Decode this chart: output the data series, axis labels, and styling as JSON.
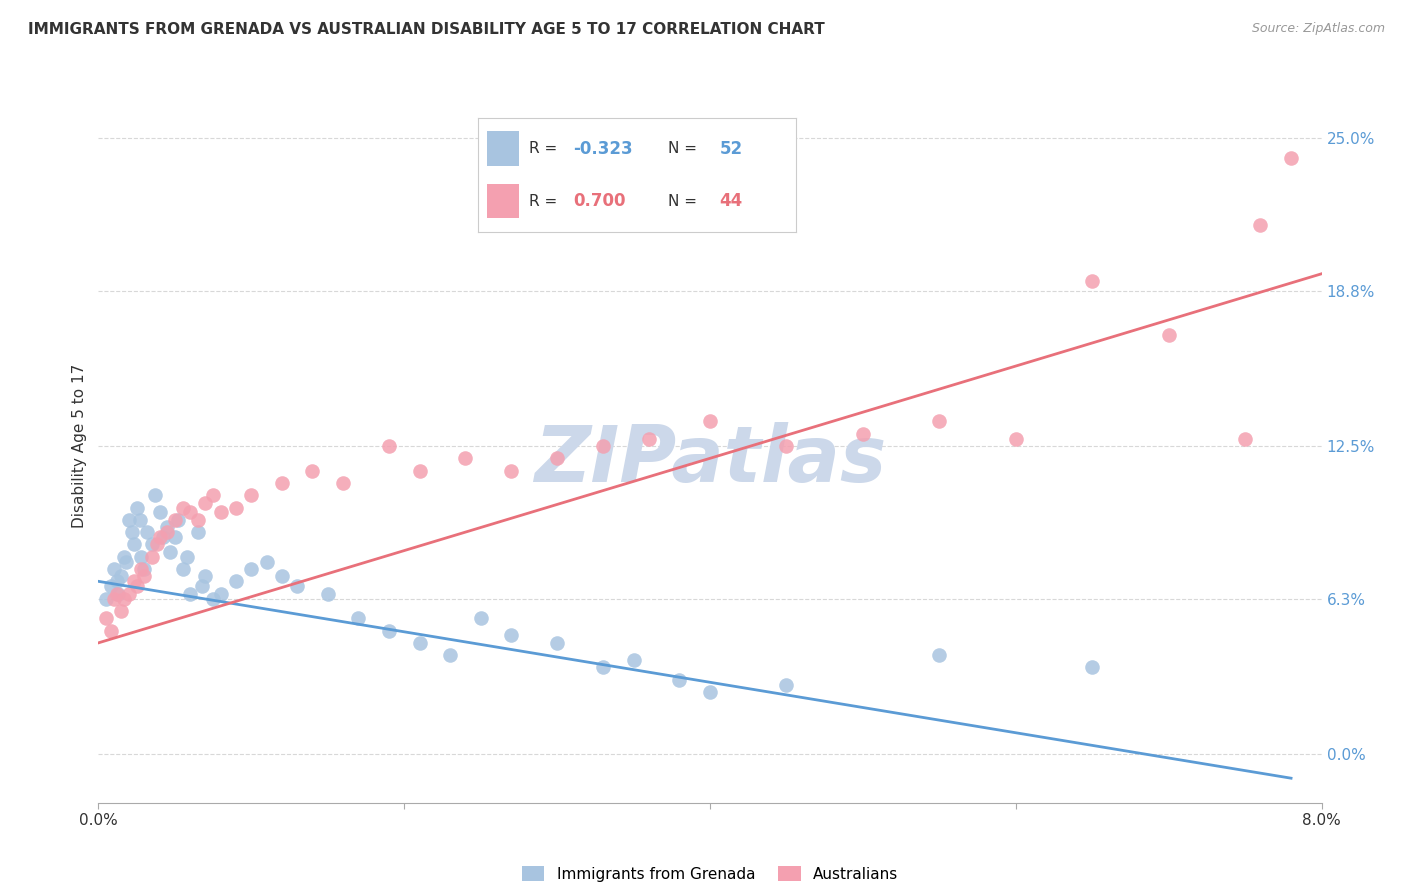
{
  "title": "IMMIGRANTS FROM GRENADA VS AUSTRALIAN DISABILITY AGE 5 TO 17 CORRELATION CHART",
  "source": "Source: ZipAtlas.com",
  "ylabel": "Disability Age 5 to 17",
  "ytick_values": [
    0.0,
    6.3,
    12.5,
    18.8,
    25.0
  ],
  "xlim": [
    0.0,
    8.0
  ],
  "ylim": [
    -2.0,
    27.0
  ],
  "plot_ylim_bottom": 0.0,
  "watermark": "ZIPatlas",
  "legend_entries": [
    {
      "label": "Immigrants from Grenada",
      "R": "-0.323",
      "N": "52"
    },
    {
      "label": "Australians",
      "R": "0.700",
      "N": "44"
    }
  ],
  "blue_scatter_x": [
    0.05,
    0.08,
    0.1,
    0.12,
    0.13,
    0.15,
    0.17,
    0.18,
    0.2,
    0.22,
    0.23,
    0.25,
    0.27,
    0.28,
    0.3,
    0.32,
    0.35,
    0.37,
    0.4,
    0.42,
    0.45,
    0.47,
    0.5,
    0.52,
    0.55,
    0.58,
    0.6,
    0.65,
    0.68,
    0.7,
    0.75,
    0.8,
    0.9,
    1.0,
    1.1,
    1.2,
    1.3,
    1.5,
    1.7,
    1.9,
    2.1,
    2.3,
    2.5,
    2.7,
    3.0,
    3.3,
    3.5,
    3.8,
    4.0,
    4.5,
    5.5,
    6.5
  ],
  "blue_scatter_y": [
    6.3,
    6.8,
    7.5,
    7.0,
    6.5,
    7.2,
    8.0,
    7.8,
    9.5,
    9.0,
    8.5,
    10.0,
    9.5,
    8.0,
    7.5,
    9.0,
    8.5,
    10.5,
    9.8,
    8.8,
    9.2,
    8.2,
    8.8,
    9.5,
    7.5,
    8.0,
    6.5,
    9.0,
    6.8,
    7.2,
    6.3,
    6.5,
    7.0,
    7.5,
    7.8,
    7.2,
    6.8,
    6.5,
    5.5,
    5.0,
    4.5,
    4.0,
    5.5,
    4.8,
    4.5,
    3.5,
    3.8,
    3.0,
    2.5,
    2.8,
    4.0,
    3.5
  ],
  "pink_scatter_x": [
    0.05,
    0.08,
    0.1,
    0.12,
    0.15,
    0.17,
    0.2,
    0.23,
    0.25,
    0.28,
    0.3,
    0.35,
    0.38,
    0.4,
    0.45,
    0.5,
    0.55,
    0.6,
    0.65,
    0.7,
    0.75,
    0.8,
    0.9,
    1.0,
    1.2,
    1.4,
    1.6,
    1.9,
    2.1,
    2.4,
    2.7,
    3.0,
    3.3,
    3.6,
    4.0,
    4.5,
    5.0,
    5.5,
    6.0,
    6.5,
    7.0,
    7.5,
    7.6,
    7.8
  ],
  "pink_scatter_y": [
    5.5,
    5.0,
    6.3,
    6.5,
    5.8,
    6.3,
    6.5,
    7.0,
    6.8,
    7.5,
    7.2,
    8.0,
    8.5,
    8.8,
    9.0,
    9.5,
    10.0,
    9.8,
    9.5,
    10.2,
    10.5,
    9.8,
    10.0,
    10.5,
    11.0,
    11.5,
    11.0,
    12.5,
    11.5,
    12.0,
    11.5,
    12.0,
    12.5,
    12.8,
    13.5,
    12.5,
    13.0,
    13.5,
    12.8,
    19.2,
    17.0,
    12.8,
    21.5,
    24.2
  ],
  "blue_line_x": [
    0.0,
    7.8
  ],
  "blue_line_y": [
    7.0,
    -1.0
  ],
  "pink_line_x": [
    0.0,
    8.0
  ],
  "pink_line_y": [
    4.5,
    19.5
  ],
  "blue_color": "#5b9bd5",
  "pink_color": "#e8707a",
  "scatter_blue": "#a8c4e0",
  "scatter_pink": "#f4a0b0",
  "background_color": "#ffffff",
  "grid_color": "#d8d8d8",
  "title_fontsize": 11,
  "source_fontsize": 9,
  "watermark_color": "#ccd8ea",
  "watermark_fontsize": 56,
  "axis_color": "#aaaaaa",
  "tick_label_color": "#333333",
  "right_tick_color": "#5b9bd5",
  "legend_text_color": "#333333",
  "legend_num_color": "#5b9bd5"
}
